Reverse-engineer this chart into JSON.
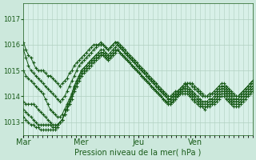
{
  "xlabel": "Pression niveau de la mer( hPa )",
  "bg_color": "#cce8dc",
  "plot_bg_color": "#d8f0e8",
  "grid_color": "#b0cfc0",
  "line_color": "#1a5c1a",
  "marker": "+",
  "markersize": 3,
  "linewidth": 0.7,
  "ylim": [
    1012.5,
    1017.6
  ],
  "yticks": [
    1013,
    1014,
    1015,
    1016,
    1017
  ],
  "n_days": 4,
  "day_labels": [
    "Mar",
    "Mer",
    "Jeu",
    "Ven"
  ],
  "series": [
    [
      1016.1,
      1015.8,
      1015.6,
      1015.5,
      1015.3,
      1015.1,
      1015.0,
      1015.0,
      1015.0,
      1014.9,
      1014.8,
      1014.8,
      1014.7,
      1014.6,
      1014.5,
      1014.4,
      1014.5,
      1014.6,
      1014.7,
      1014.9,
      1015.0,
      1015.2,
      1015.3,
      1015.4,
      1015.5,
      1015.6,
      1015.7,
      1015.8,
      1015.9,
      1016.0,
      1016.0,
      1016.0,
      1016.0,
      1016.0,
      1015.9,
      1015.8,
      1015.9,
      1016.0,
      1016.1,
      1016.0,
      1015.9,
      1015.8,
      1015.7,
      1015.6,
      1015.5,
      1015.4,
      1015.3,
      1015.2,
      1015.1,
      1015.0,
      1014.9,
      1014.8,
      1014.7,
      1014.6,
      1014.5,
      1014.4,
      1014.3,
      1014.2,
      1014.1,
      1014.0,
      1013.9,
      1013.9,
      1014.0,
      1014.0,
      1014.1,
      1014.2,
      1014.3,
      1014.4,
      1014.5,
      1014.5,
      1014.5,
      1014.4,
      1014.3,
      1014.2,
      1014.1,
      1014.0,
      1014.0,
      1014.0,
      1014.1,
      1014.1,
      1014.2,
      1014.3,
      1014.4,
      1014.4,
      1014.3,
      1014.2,
      1014.1,
      1014.0,
      1014.0,
      1014.0,
      1014.1,
      1014.2,
      1014.3,
      1014.4,
      1014.5,
      1014.6
    ],
    [
      1015.8,
      1015.5,
      1015.2,
      1015.0,
      1014.9,
      1014.8,
      1014.7,
      1014.6,
      1014.5,
      1014.4,
      1014.3,
      1014.2,
      1014.1,
      1014.0,
      1013.9,
      1013.8,
      1013.9,
      1014.0,
      1014.2,
      1014.4,
      1014.6,
      1014.8,
      1015.0,
      1015.2,
      1015.3,
      1015.4,
      1015.5,
      1015.6,
      1015.7,
      1015.8,
      1015.9,
      1016.0,
      1016.1,
      1016.0,
      1015.9,
      1015.8,
      1015.9,
      1016.0,
      1016.1,
      1016.1,
      1016.0,
      1015.9,
      1015.8,
      1015.7,
      1015.6,
      1015.5,
      1015.4,
      1015.3,
      1015.2,
      1015.1,
      1015.0,
      1014.9,
      1014.8,
      1014.7,
      1014.6,
      1014.5,
      1014.4,
      1014.3,
      1014.2,
      1014.1,
      1014.0,
      1014.0,
      1014.1,
      1014.2,
      1014.2,
      1014.3,
      1014.4,
      1014.5,
      1014.5,
      1014.5,
      1014.4,
      1014.3,
      1014.2,
      1014.1,
      1014.0,
      1014.0,
      1014.0,
      1014.1,
      1014.1,
      1014.2,
      1014.3,
      1014.4,
      1014.5,
      1014.5,
      1014.4,
      1014.3,
      1014.2,
      1014.1,
      1014.0,
      1014.0,
      1014.1,
      1014.2,
      1014.3,
      1014.4,
      1014.5,
      1014.6
    ],
    [
      1015.0,
      1014.8,
      1014.7,
      1014.6,
      1014.5,
      1014.4,
      1014.3,
      1014.2,
      1014.1,
      1013.9,
      1013.7,
      1013.5,
      1013.4,
      1013.3,
      1013.2,
      1013.2,
      1013.3,
      1013.5,
      1013.7,
      1013.9,
      1014.1,
      1014.4,
      1014.6,
      1014.8,
      1015.0,
      1015.1,
      1015.2,
      1015.3,
      1015.4,
      1015.5,
      1015.6,
      1015.7,
      1015.8,
      1015.8,
      1015.7,
      1015.6,
      1015.7,
      1015.8,
      1015.9,
      1016.0,
      1015.9,
      1015.8,
      1015.7,
      1015.6,
      1015.5,
      1015.4,
      1015.3,
      1015.2,
      1015.1,
      1015.0,
      1014.9,
      1014.8,
      1014.7,
      1014.6,
      1014.5,
      1014.4,
      1014.3,
      1014.2,
      1014.1,
      1014.0,
      1013.9,
      1013.9,
      1014.0,
      1014.1,
      1014.2,
      1014.3,
      1014.4,
      1014.5,
      1014.4,
      1014.3,
      1014.2,
      1014.1,
      1014.0,
      1013.9,
      1013.8,
      1013.8,
      1013.8,
      1013.9,
      1013.9,
      1014.0,
      1014.1,
      1014.2,
      1014.3,
      1014.3,
      1014.2,
      1014.1,
      1014.0,
      1013.9,
      1013.9,
      1013.9,
      1014.0,
      1014.1,
      1014.2,
      1014.3,
      1014.4,
      1014.5
    ],
    [
      1013.8,
      1013.7,
      1013.7,
      1013.7,
      1013.7,
      1013.6,
      1013.5,
      1013.4,
      1013.3,
      1013.2,
      1013.1,
      1013.0,
      1012.9,
      1012.9,
      1012.9,
      1013.0,
      1013.1,
      1013.3,
      1013.5,
      1013.7,
      1013.9,
      1014.2,
      1014.4,
      1014.6,
      1014.8,
      1014.9,
      1015.0,
      1015.1,
      1015.2,
      1015.3,
      1015.4,
      1015.5,
      1015.6,
      1015.6,
      1015.5,
      1015.4,
      1015.5,
      1015.6,
      1015.7,
      1015.8,
      1015.7,
      1015.6,
      1015.5,
      1015.4,
      1015.3,
      1015.2,
      1015.1,
      1015.0,
      1014.9,
      1014.8,
      1014.7,
      1014.6,
      1014.5,
      1014.4,
      1014.3,
      1014.2,
      1014.1,
      1014.0,
      1013.9,
      1013.8,
      1013.8,
      1013.8,
      1013.9,
      1014.0,
      1014.1,
      1014.2,
      1014.3,
      1014.3,
      1014.3,
      1014.2,
      1014.1,
      1014.0,
      1013.9,
      1013.8,
      1013.7,
      1013.7,
      1013.7,
      1013.8,
      1013.8,
      1013.9,
      1014.0,
      1014.1,
      1014.2,
      1014.2,
      1014.1,
      1014.0,
      1013.9,
      1013.8,
      1013.8,
      1013.8,
      1013.9,
      1014.0,
      1014.1,
      1014.2,
      1014.3,
      1014.4
    ],
    [
      1013.5,
      1013.4,
      1013.3,
      1013.2,
      1013.1,
      1013.0,
      1012.9,
      1012.9,
      1012.9,
      1012.9,
      1012.9,
      1012.9,
      1012.8,
      1012.8,
      1012.9,
      1013.0,
      1013.1,
      1013.3,
      1013.5,
      1013.7,
      1014.0,
      1014.3,
      1014.5,
      1014.7,
      1014.9,
      1015.0,
      1015.1,
      1015.2,
      1015.3,
      1015.4,
      1015.5,
      1015.5,
      1015.6,
      1015.6,
      1015.5,
      1015.4,
      1015.5,
      1015.6,
      1015.7,
      1015.8,
      1015.7,
      1015.6,
      1015.5,
      1015.4,
      1015.3,
      1015.2,
      1015.1,
      1015.0,
      1014.9,
      1014.8,
      1014.7,
      1014.6,
      1014.5,
      1014.4,
      1014.3,
      1014.2,
      1014.1,
      1014.0,
      1013.9,
      1013.8,
      1013.7,
      1013.7,
      1013.8,
      1013.9,
      1014.0,
      1014.1,
      1014.2,
      1014.2,
      1014.2,
      1014.1,
      1014.0,
      1013.9,
      1013.8,
      1013.7,
      1013.6,
      1013.6,
      1013.6,
      1013.7,
      1013.7,
      1013.8,
      1013.9,
      1014.0,
      1014.1,
      1014.1,
      1014.0,
      1013.9,
      1013.8,
      1013.7,
      1013.7,
      1013.7,
      1013.8,
      1013.9,
      1014.0,
      1014.1,
      1014.2,
      1014.3
    ],
    [
      1013.2,
      1013.1,
      1013.0,
      1012.9,
      1012.9,
      1012.8,
      1012.8,
      1012.7,
      1012.7,
      1012.7,
      1012.7,
      1012.7,
      1012.7,
      1012.7,
      1012.8,
      1013.0,
      1013.1,
      1013.3,
      1013.6,
      1013.8,
      1014.1,
      1014.4,
      1014.6,
      1014.8,
      1015.0,
      1015.1,
      1015.2,
      1015.3,
      1015.4,
      1015.5,
      1015.6,
      1015.6,
      1015.7,
      1015.7,
      1015.6,
      1015.5,
      1015.6,
      1015.7,
      1015.8,
      1015.8,
      1015.7,
      1015.6,
      1015.5,
      1015.4,
      1015.3,
      1015.2,
      1015.1,
      1015.0,
      1014.9,
      1014.8,
      1014.7,
      1014.6,
      1014.5,
      1014.4,
      1014.3,
      1014.2,
      1014.1,
      1014.0,
      1013.9,
      1013.8,
      1013.7,
      1013.7,
      1013.8,
      1013.9,
      1014.0,
      1014.1,
      1014.1,
      1014.1,
      1014.1,
      1014.0,
      1013.9,
      1013.8,
      1013.7,
      1013.6,
      1013.6,
      1013.5,
      1013.6,
      1013.6,
      1013.7,
      1013.7,
      1013.8,
      1013.9,
      1014.0,
      1014.0,
      1013.9,
      1013.8,
      1013.7,
      1013.6,
      1013.6,
      1013.6,
      1013.7,
      1013.8,
      1013.9,
      1014.0,
      1014.1,
      1014.2
    ]
  ]
}
